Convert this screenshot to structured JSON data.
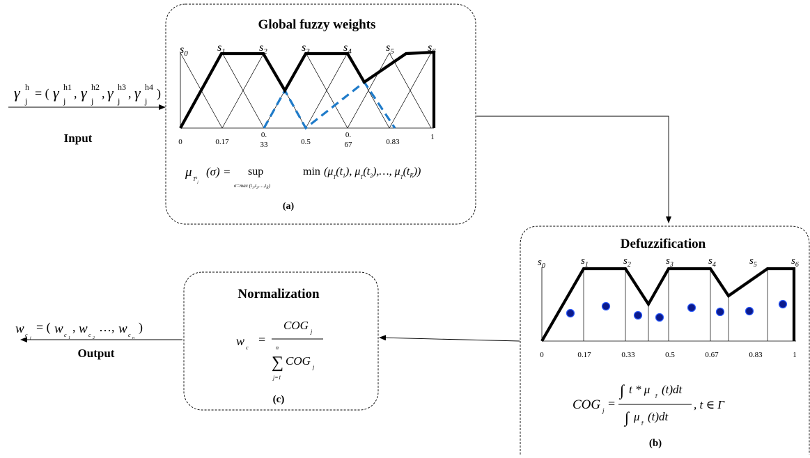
{
  "input": {
    "formula": {
      "gamma": "γ",
      "sub": "j",
      "sup": "h",
      "open": " = (",
      "comps": [
        "h1",
        "h2",
        "h3",
        "h4"
      ],
      "close": ")"
    },
    "label": "Input"
  },
  "panel_a": {
    "title": "Global fuzzy weights",
    "caption": "(a)",
    "terms": [
      "s0",
      "s1",
      "s2",
      "s3",
      "s4",
      "s5",
      "s6"
    ],
    "tick_labels": [
      "0",
      "0.17",
      "0.\n33",
      "0.5",
      "0.\n67",
      "0.83",
      "1"
    ],
    "formula": {
      "mu": "μ",
      "arg": "(σ) =",
      "sup": "sup",
      "sup_sub": "σ=max (t1,t2,…,tK)",
      "min": "min",
      "rest": "(μ(t1), μ(t2), …, μ(tK))"
    }
  },
  "panel_b": {
    "title": "Defuzzification",
    "caption": "(b)",
    "terms": [
      "s0",
      "s1",
      "s2",
      "s3",
      "s4",
      "s5",
      "s6"
    ],
    "tick_labels": [
      "0",
      "0.17",
      "0.33",
      "0.5",
      "0.67",
      "0.83",
      "1"
    ],
    "formula": {
      "lhs": "COG",
      "num": "∫ t * μ(t)dt",
      "den": "∫ μ(t)dt",
      "tail": ", t ∈ Γ"
    }
  },
  "panel_c": {
    "title": "Normalization",
    "caption": "(c)",
    "formula": {
      "lhs": "w",
      "num": "COG",
      "den": "COG",
      "sum_top": "n",
      "sum_bot": "j=1"
    }
  },
  "output": {
    "formula": "w = (w, w …, w)",
    "label": "Output"
  },
  "colors": {
    "line": "#000000",
    "dashed": "#1f7bc9",
    "dot_fill": "#0b1a8c",
    "dot_edge": "#2d5cff"
  }
}
